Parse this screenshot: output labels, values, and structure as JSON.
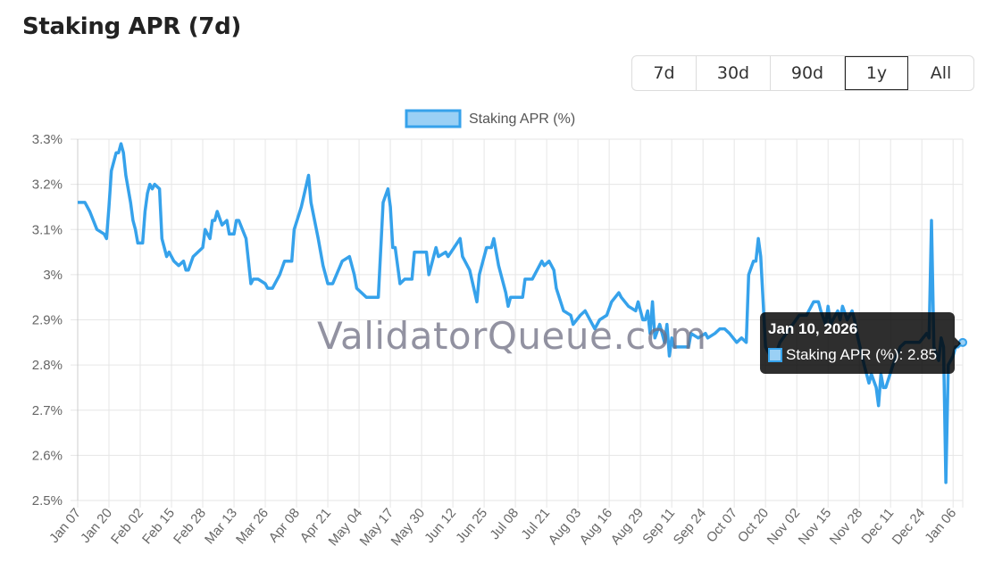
{
  "header": {
    "title": "Staking APR (7d)"
  },
  "range_buttons": [
    {
      "label": "7d",
      "active": false
    },
    {
      "label": "30d",
      "active": false
    },
    {
      "label": "90d",
      "active": false
    },
    {
      "label": "1y",
      "active": true
    },
    {
      "label": "All",
      "active": false
    }
  ],
  "watermark": "ValidatorQueue.com",
  "tooltip": {
    "title": "Jan 10, 2026",
    "label": "Staking APR (%): 2.85"
  },
  "chart_data": {
    "type": "line",
    "title": "",
    "xlabel": "",
    "ylabel": "",
    "ylim": [
      2.5,
      3.3
    ],
    "y_ticks": [
      2.5,
      2.6,
      2.7,
      2.8,
      2.9,
      3.0,
      3.1,
      3.2,
      3.3
    ],
    "y_tick_labels": [
      "2.5%",
      "2.6%",
      "2.7%",
      "2.8%",
      "2.9%",
      "3%",
      "3.1%",
      "3.2%",
      "3.3%"
    ],
    "x_tick_labels": [
      "Jan 07",
      "Jan 20",
      "Feb 02",
      "Feb 15",
      "Feb 28",
      "Mar 13",
      "Mar 26",
      "Apr 08",
      "Apr 21",
      "May 04",
      "May 17",
      "May 30",
      "Jun 12",
      "Jun 25",
      "Jul 08",
      "Jul 21",
      "Aug 03",
      "Aug 16",
      "Aug 29",
      "Sep 11",
      "Sep 24",
      "Oct 07",
      "Oct 20",
      "Nov 02",
      "Nov 15",
      "Nov 28",
      "Dec 11",
      "Dec 24",
      "Jan 06"
    ],
    "grid": true,
    "legend": "top-center",
    "color": "#36A2EB",
    "fill_color": "#9AD0F5",
    "series": [
      {
        "name": "Staking APR (%)",
        "points": [
          [
            "2025-01-07",
            3.16
          ],
          [
            "2025-01-10",
            3.16
          ],
          [
            "2025-01-12",
            3.14
          ],
          [
            "2025-01-15",
            3.1
          ],
          [
            "2025-01-18",
            3.09
          ],
          [
            "2025-01-19",
            3.08
          ],
          [
            "2025-01-20",
            3.15
          ],
          [
            "2025-01-21",
            3.23
          ],
          [
            "2025-01-23",
            3.27
          ],
          [
            "2025-01-24",
            3.27
          ],
          [
            "2025-01-25",
            3.29
          ],
          [
            "2025-01-26",
            3.27
          ],
          [
            "2025-01-27",
            3.22
          ],
          [
            "2025-01-29",
            3.16
          ],
          [
            "2025-01-30",
            3.12
          ],
          [
            "2025-01-31",
            3.1
          ],
          [
            "2025-02-01",
            3.07
          ],
          [
            "2025-02-03",
            3.07
          ],
          [
            "2025-02-04",
            3.14
          ],
          [
            "2025-02-05",
            3.18
          ],
          [
            "2025-02-06",
            3.2
          ],
          [
            "2025-02-07",
            3.19
          ],
          [
            "2025-02-08",
            3.2
          ],
          [
            "2025-02-10",
            3.19
          ],
          [
            "2025-02-11",
            3.08
          ],
          [
            "2025-02-13",
            3.04
          ],
          [
            "2025-02-14",
            3.05
          ],
          [
            "2025-02-16",
            3.03
          ],
          [
            "2025-02-18",
            3.02
          ],
          [
            "2025-02-20",
            3.03
          ],
          [
            "2025-02-21",
            3.01
          ],
          [
            "2025-02-22",
            3.01
          ],
          [
            "2025-02-24",
            3.04
          ],
          [
            "2025-02-28",
            3.06
          ],
          [
            "2025-03-01",
            3.1
          ],
          [
            "2025-03-03",
            3.08
          ],
          [
            "2025-03-04",
            3.12
          ],
          [
            "2025-03-05",
            3.12
          ],
          [
            "2025-03-06",
            3.14
          ],
          [
            "2025-03-08",
            3.11
          ],
          [
            "2025-03-10",
            3.12
          ],
          [
            "2025-03-11",
            3.09
          ],
          [
            "2025-03-13",
            3.09
          ],
          [
            "2025-03-14",
            3.12
          ],
          [
            "2025-03-15",
            3.12
          ],
          [
            "2025-03-18",
            3.08
          ],
          [
            "2025-03-20",
            2.98
          ],
          [
            "2025-03-21",
            2.99
          ],
          [
            "2025-03-23",
            2.99
          ],
          [
            "2025-03-26",
            2.98
          ],
          [
            "2025-03-27",
            2.97
          ],
          [
            "2025-03-29",
            2.97
          ],
          [
            "2025-04-01",
            3.0
          ],
          [
            "2025-04-03",
            3.03
          ],
          [
            "2025-04-06",
            3.03
          ],
          [
            "2025-04-07",
            3.1
          ],
          [
            "2025-04-10",
            3.15
          ],
          [
            "2025-04-13",
            3.22
          ],
          [
            "2025-04-14",
            3.16
          ],
          [
            "2025-04-17",
            3.08
          ],
          [
            "2025-04-19",
            3.02
          ],
          [
            "2025-04-21",
            2.98
          ],
          [
            "2025-04-23",
            2.98
          ],
          [
            "2025-04-27",
            3.03
          ],
          [
            "2025-04-30",
            3.04
          ],
          [
            "2025-05-02",
            3.0
          ],
          [
            "2025-05-03",
            2.97
          ],
          [
            "2025-05-07",
            2.95
          ],
          [
            "2025-05-12",
            2.95
          ],
          [
            "2025-05-14",
            3.16
          ],
          [
            "2025-05-16",
            3.19
          ],
          [
            "2025-05-17",
            3.15
          ],
          [
            "2025-05-18",
            3.06
          ],
          [
            "2025-05-19",
            3.06
          ],
          [
            "2025-05-21",
            2.98
          ],
          [
            "2025-05-23",
            2.99
          ],
          [
            "2025-05-26",
            2.99
          ],
          [
            "2025-05-27",
            3.05
          ],
          [
            "2025-05-29",
            3.05
          ],
          [
            "2025-06-01",
            3.05
          ],
          [
            "2025-06-02",
            3.0
          ],
          [
            "2025-06-05",
            3.06
          ],
          [
            "2025-06-06",
            3.04
          ],
          [
            "2025-06-09",
            3.05
          ],
          [
            "2025-06-10",
            3.04
          ],
          [
            "2025-06-15",
            3.08
          ],
          [
            "2025-06-16",
            3.04
          ],
          [
            "2025-06-19",
            3.01
          ],
          [
            "2025-06-22",
            2.94
          ],
          [
            "2025-06-23",
            3.0
          ],
          [
            "2025-06-26",
            3.06
          ],
          [
            "2025-06-28",
            3.06
          ],
          [
            "2025-06-29",
            3.08
          ],
          [
            "2025-07-01",
            3.02
          ],
          [
            "2025-07-04",
            2.96
          ],
          [
            "2025-07-05",
            2.93
          ],
          [
            "2025-07-06",
            2.95
          ],
          [
            "2025-07-11",
            2.95
          ],
          [
            "2025-07-12",
            2.99
          ],
          [
            "2025-07-15",
            2.99
          ],
          [
            "2025-07-19",
            3.03
          ],
          [
            "2025-07-20",
            3.02
          ],
          [
            "2025-07-22",
            3.03
          ],
          [
            "2025-07-24",
            3.01
          ],
          [
            "2025-07-25",
            2.97
          ],
          [
            "2025-07-28",
            2.92
          ],
          [
            "2025-07-31",
            2.91
          ],
          [
            "2025-08-01",
            2.89
          ],
          [
            "2025-08-04",
            2.91
          ],
          [
            "2025-08-06",
            2.92
          ],
          [
            "2025-08-09",
            2.89
          ],
          [
            "2025-08-10",
            2.88
          ],
          [
            "2025-08-12",
            2.9
          ],
          [
            "2025-08-15",
            2.91
          ],
          [
            "2025-08-17",
            2.94
          ],
          [
            "2025-08-20",
            2.96
          ],
          [
            "2025-08-21",
            2.95
          ],
          [
            "2025-08-24",
            2.93
          ],
          [
            "2025-08-27",
            2.92
          ],
          [
            "2025-08-28",
            2.94
          ],
          [
            "2025-08-30",
            2.9
          ],
          [
            "2025-08-31",
            2.9
          ],
          [
            "2025-09-01",
            2.92
          ],
          [
            "2025-09-02",
            2.87
          ],
          [
            "2025-09-03",
            2.94
          ],
          [
            "2025-09-04",
            2.86
          ],
          [
            "2025-09-06",
            2.89
          ],
          [
            "2025-09-08",
            2.85
          ],
          [
            "2025-09-09",
            2.89
          ],
          [
            "2025-09-10",
            2.82
          ],
          [
            "2025-09-11",
            2.86
          ],
          [
            "2025-09-12",
            2.84
          ],
          [
            "2025-09-18",
            2.84
          ],
          [
            "2025-09-19",
            2.87
          ],
          [
            "2025-09-22",
            2.86
          ],
          [
            "2025-09-25",
            2.87
          ],
          [
            "2025-09-26",
            2.86
          ],
          [
            "2025-09-29",
            2.87
          ],
          [
            "2025-10-01",
            2.88
          ],
          [
            "2025-10-03",
            2.88
          ],
          [
            "2025-10-05",
            2.87
          ],
          [
            "2025-10-08",
            2.85
          ],
          [
            "2025-10-10",
            2.86
          ],
          [
            "2025-10-12",
            2.85
          ],
          [
            "2025-10-13",
            3.0
          ],
          [
            "2025-10-15",
            3.03
          ],
          [
            "2025-10-16",
            3.03
          ],
          [
            "2025-10-17",
            3.08
          ],
          [
            "2025-10-18",
            3.04
          ],
          [
            "2025-10-20",
            2.84
          ],
          [
            "2025-10-22",
            2.82
          ],
          [
            "2025-10-24",
            2.82
          ],
          [
            "2025-10-26",
            2.85
          ],
          [
            "2025-10-30",
            2.88
          ],
          [
            "2025-11-03",
            2.91
          ],
          [
            "2025-11-06",
            2.91
          ],
          [
            "2025-11-09",
            2.94
          ],
          [
            "2025-11-11",
            2.94
          ],
          [
            "2025-11-12",
            2.92
          ],
          [
            "2025-11-14",
            2.89
          ],
          [
            "2025-11-15",
            2.93
          ],
          [
            "2025-11-16",
            2.89
          ],
          [
            "2025-11-19",
            2.92
          ],
          [
            "2025-11-20",
            2.9
          ],
          [
            "2025-11-21",
            2.93
          ],
          [
            "2025-11-23",
            2.9
          ],
          [
            "2025-11-25",
            2.92
          ],
          [
            "2025-11-26",
            2.9
          ],
          [
            "2025-11-27",
            2.87
          ],
          [
            "2025-11-30",
            2.8
          ],
          [
            "2025-12-02",
            2.76
          ],
          [
            "2025-12-03",
            2.78
          ],
          [
            "2025-12-05",
            2.75
          ],
          [
            "2025-12-06",
            2.71
          ],
          [
            "2025-12-07",
            2.78
          ],
          [
            "2025-12-08",
            2.75
          ],
          [
            "2025-12-09",
            2.75
          ],
          [
            "2025-12-12",
            2.8
          ],
          [
            "2025-12-15",
            2.84
          ],
          [
            "2025-12-17",
            2.85
          ],
          [
            "2025-12-23",
            2.85
          ],
          [
            "2025-12-26",
            2.87
          ],
          [
            "2025-12-27",
            2.86
          ],
          [
            "2025-12-28",
            3.12
          ],
          [
            "2025-12-29",
            2.84
          ],
          [
            "2025-12-31",
            2.81
          ],
          [
            "2026-01-01",
            2.86
          ],
          [
            "2026-01-02",
            2.84
          ],
          [
            "2026-01-03",
            2.54
          ],
          [
            "2026-01-04",
            2.8
          ],
          [
            "2026-01-06",
            2.82
          ],
          [
            "2026-01-07",
            2.84
          ],
          [
            "2026-01-08",
            2.84
          ],
          [
            "2026-01-10",
            2.85
          ]
        ]
      }
    ]
  }
}
